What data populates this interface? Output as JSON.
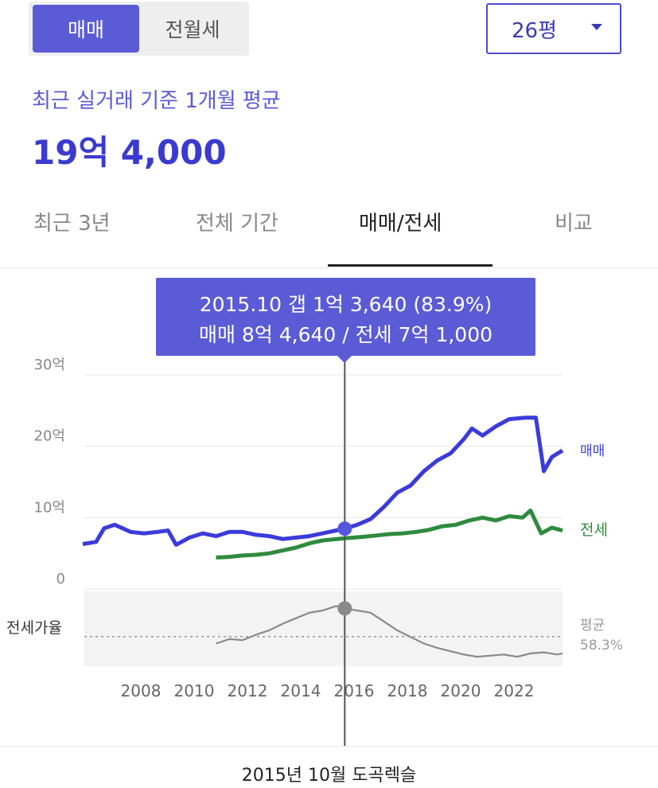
{
  "segment": {
    "options": [
      "매매",
      "전월세"
    ],
    "selected": "매매"
  },
  "size_select": {
    "value": "26평"
  },
  "summary": {
    "label": "최근 실거래 기준 1개월 평균",
    "price": "19억 4,000"
  },
  "tabs": [
    {
      "label": "최근 3년",
      "active": false
    },
    {
      "label": "전체 기간",
      "active": false
    },
    {
      "label": "매매/전세",
      "active": true
    },
    {
      "label": "비교",
      "active": false
    }
  ],
  "tooltip": {
    "line1": "2015.10  갭 1억 3,640 (83.9%)",
    "line2": "매매 8억 4,640 / 전세 7억 1,000"
  },
  "colors": {
    "accent": "#5b5bd6",
    "sale": "#3b3bdb",
    "jeonse": "#2e8b3e",
    "ratio": "#888888"
  },
  "chart_data": {
    "type": "line",
    "y_unit": "억",
    "ylim": [
      0,
      30
    ],
    "y_ticks": [
      "30억",
      "20억",
      "10억",
      "0"
    ],
    "x_ticks": [
      "2008",
      "2010",
      "2012",
      "2014",
      "2016",
      "2018",
      "2020",
      "2022"
    ],
    "series": [
      {
        "name": "매매",
        "color": "#3b3bdb",
        "points": [
          [
            2006.0,
            6.3
          ],
          [
            2006.5,
            6.6
          ],
          [
            2006.8,
            8.5
          ],
          [
            2007.2,
            9.0
          ],
          [
            2007.8,
            8.0
          ],
          [
            2008.3,
            7.8
          ],
          [
            2008.8,
            8.0
          ],
          [
            2009.2,
            8.2
          ],
          [
            2009.5,
            6.2
          ],
          [
            2010.0,
            7.2
          ],
          [
            2010.5,
            7.8
          ],
          [
            2011.0,
            7.4
          ],
          [
            2011.5,
            8.0
          ],
          [
            2012.0,
            8.0
          ],
          [
            2012.5,
            7.6
          ],
          [
            2013.0,
            7.4
          ],
          [
            2013.5,
            7.0
          ],
          [
            2014.0,
            7.2
          ],
          [
            2014.5,
            7.4
          ],
          [
            2015.0,
            7.8
          ],
          [
            2015.5,
            8.2
          ],
          [
            2015.83,
            8.46
          ],
          [
            2016.3,
            9.0
          ],
          [
            2016.8,
            9.8
          ],
          [
            2017.3,
            11.5
          ],
          [
            2017.8,
            13.5
          ],
          [
            2018.3,
            14.5
          ],
          [
            2018.8,
            16.5
          ],
          [
            2019.3,
            18.0
          ],
          [
            2019.8,
            19.0
          ],
          [
            2020.3,
            21.0
          ],
          [
            2020.6,
            22.5
          ],
          [
            2021.0,
            21.5
          ],
          [
            2021.5,
            22.8
          ],
          [
            2022.0,
            23.8
          ],
          [
            2022.6,
            24.0
          ],
          [
            2023.0,
            24.0
          ],
          [
            2023.3,
            16.5
          ],
          [
            2023.6,
            18.5
          ],
          [
            2024.0,
            19.4
          ]
        ]
      },
      {
        "name": "전세",
        "color": "#2e8b3e",
        "points": [
          [
            2011.0,
            4.4
          ],
          [
            2011.5,
            4.5
          ],
          [
            2012.0,
            4.7
          ],
          [
            2012.5,
            4.8
          ],
          [
            2013.0,
            5.0
          ],
          [
            2013.5,
            5.4
          ],
          [
            2014.0,
            5.8
          ],
          [
            2014.5,
            6.4
          ],
          [
            2015.0,
            6.8
          ],
          [
            2015.83,
            7.1
          ],
          [
            2016.5,
            7.3
          ],
          [
            2017.0,
            7.5
          ],
          [
            2017.5,
            7.7
          ],
          [
            2018.0,
            7.8
          ],
          [
            2018.5,
            8.0
          ],
          [
            2019.0,
            8.3
          ],
          [
            2019.5,
            8.8
          ],
          [
            2020.0,
            9.0
          ],
          [
            2020.5,
            9.6
          ],
          [
            2021.0,
            10.0
          ],
          [
            2021.5,
            9.6
          ],
          [
            2022.0,
            10.2
          ],
          [
            2022.5,
            10.0
          ],
          [
            2022.8,
            11.0
          ],
          [
            2023.2,
            7.8
          ],
          [
            2023.6,
            8.6
          ],
          [
            2024.0,
            8.2
          ]
        ]
      }
    ],
    "ratio": {
      "label": "전세가율",
      "avg_label": "평균",
      "avg_value": "58.3%",
      "avg": 58.3,
      "range": [
        35,
        95
      ],
      "points": [
        [
          2011.0,
          52
        ],
        [
          2011.5,
          56
        ],
        [
          2012.0,
          55
        ],
        [
          2012.5,
          60
        ],
        [
          2013.0,
          64
        ],
        [
          2013.5,
          70
        ],
        [
          2014.0,
          75
        ],
        [
          2014.5,
          80
        ],
        [
          2015.0,
          82
        ],
        [
          2015.5,
          86
        ],
        [
          2015.83,
          83.9
        ],
        [
          2016.3,
          82
        ],
        [
          2016.8,
          80
        ],
        [
          2017.3,
          72
        ],
        [
          2017.8,
          64
        ],
        [
          2018.3,
          58
        ],
        [
          2018.8,
          52
        ],
        [
          2019.3,
          48
        ],
        [
          2019.8,
          45
        ],
        [
          2020.3,
          42
        ],
        [
          2020.8,
          40
        ],
        [
          2021.3,
          41
        ],
        [
          2021.8,
          42
        ],
        [
          2022.3,
          40
        ],
        [
          2022.8,
          43
        ],
        [
          2023.3,
          44
        ],
        [
          2023.8,
          42
        ],
        [
          2024.0,
          43
        ]
      ]
    },
    "selected": {
      "x": 2015.83
    }
  },
  "footer": {
    "label": "2015년 10월 도곡렉슬"
  }
}
